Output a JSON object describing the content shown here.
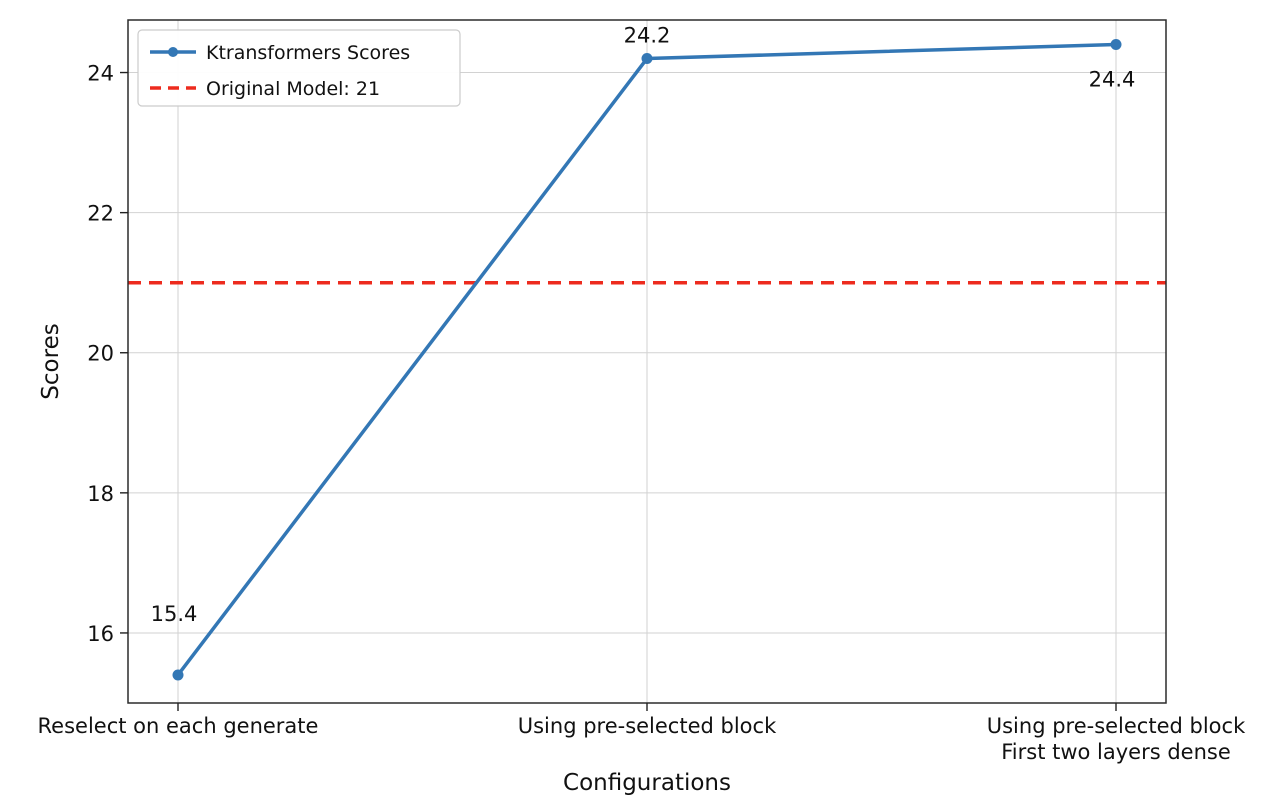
{
  "chart_data": {
    "type": "line",
    "title": "",
    "xlabel": "Configurations",
    "ylabel": "Scores",
    "categories": [
      "Reselect on each generate",
      "Using pre-selected block",
      "Using pre-selected block\nFirst two layers dense"
    ],
    "series": [
      {
        "name": "Ktransformers Scores",
        "color": "#3377b5",
        "marker": "circle",
        "values": [
          15.4,
          24.2,
          24.4
        ]
      }
    ],
    "data_labels": [
      "15.4",
      "24.2",
      "24.4"
    ],
    "reference_line": {
      "label": "Original Model: 21",
      "value": 21,
      "color": "#ed2b1e",
      "style": "dashed"
    },
    "yticks": [
      16,
      18,
      20,
      22,
      24
    ],
    "ylim": [
      15.0,
      24.75
    ],
    "grid": true,
    "legend_position": "upper-left",
    "background": "#ffffff",
    "plot_border_color": "#2b2b2b"
  }
}
